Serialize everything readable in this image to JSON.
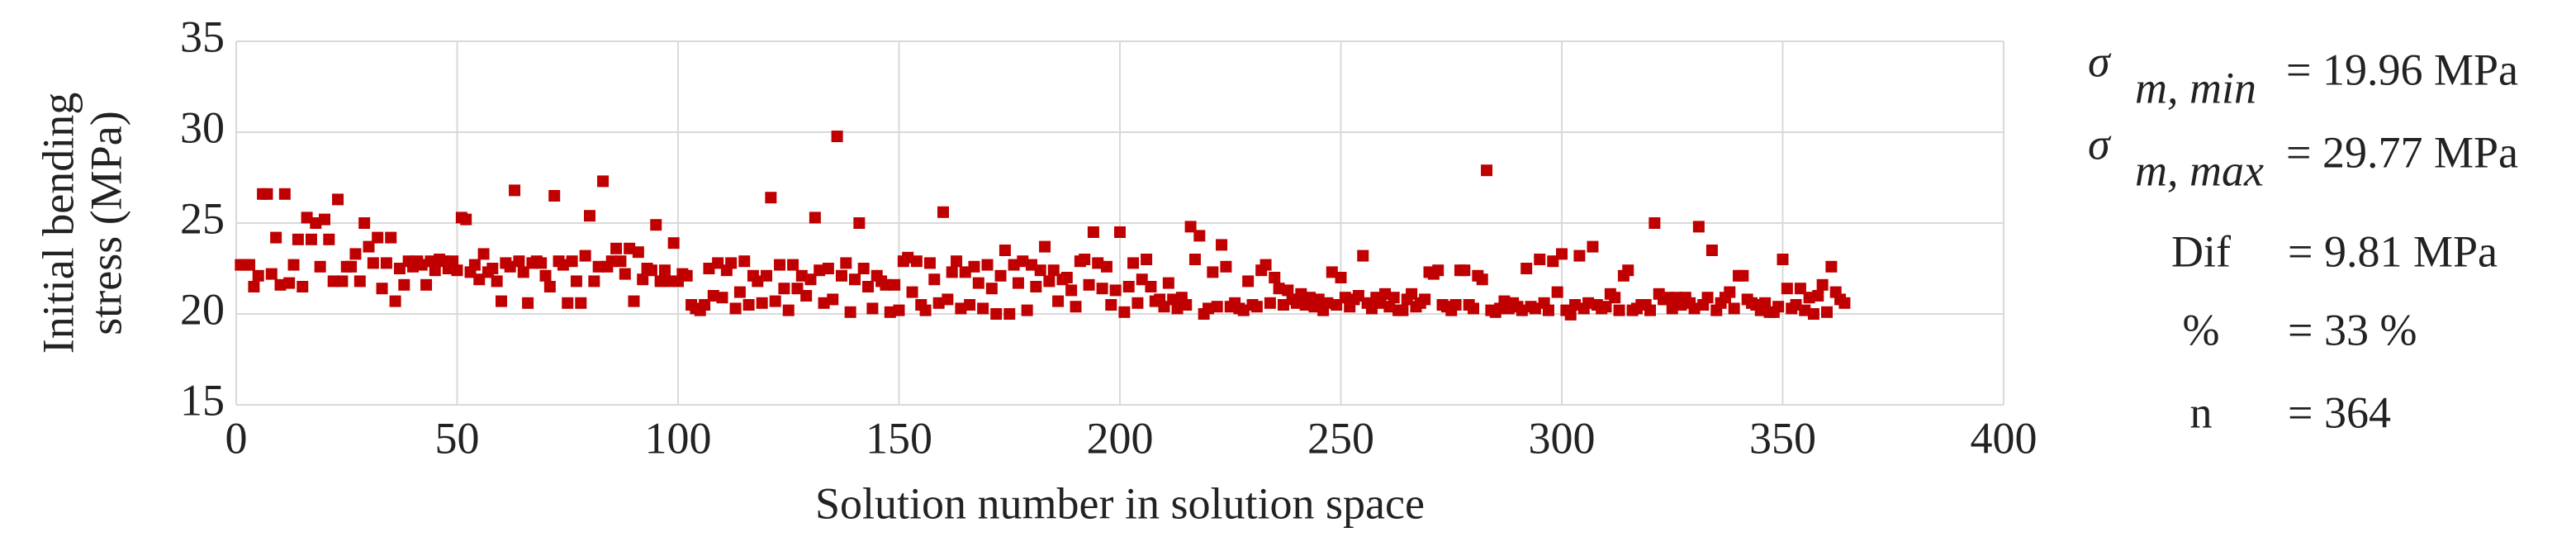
{
  "chart_data": {
    "type": "scatter",
    "xlabel": "Solution number in solution space",
    "ylabel": [
      "Initial bending",
      "stress (MPa)"
    ],
    "color": "#c00000",
    "xlim": [
      0,
      400
    ],
    "xticks": [
      0,
      50,
      100,
      150,
      200,
      250,
      300,
      350,
      400
    ],
    "ylim": [
      15,
      35
    ],
    "yticks": [
      15,
      20,
      25,
      30,
      35
    ],
    "grid": true,
    "x": [
      1,
      2,
      3,
      4,
      5,
      6,
      7,
      8,
      9,
      10,
      11,
      12,
      13,
      14,
      15,
      16,
      17,
      18,
      19,
      20,
      21,
      22,
      23,
      24,
      25,
      26,
      27,
      28,
      29,
      30,
      31,
      32,
      33,
      34,
      35,
      36,
      37,
      38,
      39,
      40,
      41,
      42,
      43,
      44,
      45,
      46,
      47,
      48,
      49,
      50,
      51,
      52,
      53,
      54,
      55,
      56,
      57,
      58,
      59,
      60,
      61,
      62,
      63,
      64,
      65,
      66,
      67,
      68,
      69,
      70,
      71,
      72,
      73,
      74,
      75,
      76,
      77,
      78,
      79,
      80,
      81,
      82,
      83,
      84,
      85,
      86,
      87,
      88,
      89,
      90,
      91,
      92,
      93,
      94,
      95,
      96,
      97,
      98,
      99,
      100,
      101,
      102,
      103,
      104,
      105,
      106,
      107,
      108,
      109,
      110,
      111,
      112,
      113,
      114,
      115,
      116,
      117,
      118,
      119,
      120,
      121,
      122,
      123,
      124,
      125,
      126,
      127,
      128,
      129,
      130,
      131,
      132,
      133,
      134,
      135,
      136,
      137,
      138,
      139,
      140,
      141,
      142,
      143,
      144,
      145,
      146,
      147,
      148,
      149,
      150,
      151,
      152,
      153,
      154,
      155,
      156,
      157,
      158,
      159,
      160,
      161,
      162,
      163,
      164,
      165,
      166,
      167,
      168,
      169,
      170,
      171,
      172,
      173,
      174,
      175,
      176,
      177,
      178,
      179,
      180,
      181,
      182,
      183,
      184,
      185,
      186,
      187,
      188,
      189,
      190,
      191,
      192,
      193,
      194,
      195,
      196,
      197,
      198,
      199,
      200,
      201,
      202,
      203,
      204,
      205,
      206,
      207,
      208,
      209,
      210,
      211,
      212,
      213,
      214,
      215,
      216,
      217,
      218,
      219,
      220,
      221,
      222,
      223,
      224,
      225,
      226,
      227,
      228,
      229,
      230,
      231,
      232,
      233,
      234,
      235,
      236,
      237,
      238,
      239,
      240,
      241,
      242,
      243,
      244,
      245,
      246,
      247,
      248,
      249,
      250,
      251,
      252,
      253,
      254,
      255,
      256,
      257,
      258,
      259,
      260,
      261,
      262,
      263,
      264,
      265,
      266,
      267,
      268,
      269,
      270,
      271,
      272,
      273,
      274,
      275,
      276,
      277,
      278,
      279,
      280,
      281,
      282,
      283,
      284,
      285,
      286,
      287,
      288,
      289,
      290,
      291,
      292,
      293,
      294,
      295,
      296,
      297,
      298,
      299,
      300,
      301,
      302,
      303,
      304,
      305,
      306,
      307,
      308,
      309,
      310,
      311,
      312,
      313,
      314,
      315,
      316,
      317,
      318,
      319,
      320,
      321,
      322,
      323,
      324,
      325,
      326,
      327,
      328,
      329,
      330,
      331,
      332,
      333,
      334,
      335,
      336,
      337,
      338,
      339,
      340,
      341,
      342,
      343,
      344,
      345,
      346,
      347,
      348,
      349,
      350,
      351,
      352,
      353,
      354,
      355,
      356,
      357,
      358,
      359,
      360,
      361,
      362,
      363,
      364
    ],
    "values": [
      22.7,
      22.7,
      22.7,
      21.5,
      22.1,
      26.6,
      26.6,
      22.2,
      24.2,
      21.6,
      26.6,
      21.7,
      22.7,
      24.1,
      21.5,
      25.3,
      24.1,
      25.0,
      22.6,
      25.2,
      24.1,
      21.8,
      26.3,
      21.8,
      22.6,
      22.6,
      23.3,
      21.8,
      25.0,
      23.7,
      22.8,
      24.2,
      21.4,
      22.8,
      24.2,
      20.7,
      22.5,
      21.6,
      22.9,
      22.6,
      22.9,
      22.7,
      21.6,
      22.9,
      22.4,
      23.0,
      22.9,
      22.5,
      22.9,
      22.4,
      25.3,
      25.2,
      22.3,
      22.7,
      21.9,
      23.3,
      22.3,
      22.5,
      21.8,
      20.7,
      22.8,
      22.6,
      26.8,
      22.9,
      22.3,
      20.6,
      22.8,
      22.9,
      22.8,
      22.1,
      21.5,
      26.5,
      22.9,
      22.7,
      20.6,
      22.9,
      21.8,
      20.6,
      23.2,
      25.4,
      21.8,
      22.6,
      27.3,
      22.6,
      22.9,
      23.6,
      22.9,
      22.2,
      23.6,
      20.7,
      23.4,
      21.9,
      22.5,
      22.4,
      24.9,
      21.8,
      22.4,
      21.8,
      23.9,
      21.8,
      22.2,
      22.1,
      20.5,
      20.3,
      20.2,
      20.5,
      22.5,
      21.0,
      22.8,
      20.9,
      22.4,
      22.8,
      20.3,
      21.2,
      22.9,
      20.5,
      22.1,
      21.8,
      20.6,
      22.1,
      26.4,
      20.7,
      22.7,
      21.4,
      20.2,
      22.7,
      21.4,
      22.1,
      21.0,
      21.9,
      25.3,
      22.4,
      20.6,
      22.5,
      20.8,
      29.77,
      22.1,
      22.8,
      20.1,
      21.9,
      25.0,
      22.5,
      21.5,
      20.3,
      22.1,
      21.8,
      21.6,
      20.1,
      21.6,
      20.2,
      22.9,
      23.1,
      21.2,
      22.9,
      20.5,
      20.2,
      22.8,
      21.9,
      20.6,
      25.6,
      20.8,
      22.3,
      22.9,
      20.3,
      22.3,
      20.5,
      22.6,
      21.7,
      20.3,
      22.7,
      21.4,
      20.0,
      22.1,
      23.5,
      20.0,
      22.7,
      21.7,
      22.9,
      20.2,
      22.7,
      21.5,
      22.4,
      23.7,
      21.8,
      22.4,
      20.7,
      21.9,
      22.0,
      21.3,
      20.4,
      22.9,
      23.0,
      21.6,
      24.5,
      22.8,
      21.4,
      22.6,
      20.5,
      21.3,
      24.5,
      20.1,
      21.5,
      22.8,
      20.6,
      21.9,
      23.0,
      21.5,
      20.7,
      20.8,
      20.4,
      21.7,
      20.8,
      20.3,
      20.9,
      20.5,
      24.8,
      23.0,
      24.3,
      20.0,
      20.3,
      22.3,
      20.4,
      23.8,
      22.6,
      20.4,
      20.6,
      20.3,
      20.2,
      21.8,
      20.5,
      20.4,
      22.4,
      22.7,
      20.6,
      22.0,
      21.4,
      20.5,
      21.3,
      20.8,
      20.6,
      21.1,
      20.5,
      20.9,
      20.4,
      20.8,
      20.2,
      20.6,
      22.3,
      20.5,
      22.0,
      20.9,
      20.4,
      20.8,
      21.0,
      23.2,
      20.6,
      20.3,
      20.9,
      20.6,
      21.1,
      20.4,
      20.9,
      20.2,
      20.2,
      20.8,
      21.1,
      20.4,
      20.6,
      20.8,
      22.3,
      22.2,
      22.4,
      20.5,
      20.4,
      20.2,
      20.5,
      22.4,
      22.4,
      20.5,
      20.3,
      22.1,
      21.9,
      27.9,
      20.2,
      20.1,
      20.3,
      20.7,
      20.3,
      20.6,
      20.4,
      20.2,
      22.5,
      20.4,
      20.3,
      23.0,
      20.6,
      20.2,
      22.9,
      21.2,
      23.3,
      20.2,
      19.96,
      20.5,
      23.2,
      20.3,
      20.6,
      23.7,
      20.5,
      20.3,
      20.4,
      21.1,
      20.9,
      20.2,
      22.1,
      22.4,
      20.2,
      20.3,
      20.5,
      20.5,
      20.2,
      25.0,
      21.1,
      20.8,
      20.9,
      20.3,
      20.9,
      20.5,
      20.9,
      20.6,
      20.3,
      24.8,
      20.5,
      20.9,
      23.5,
      20.2,
      20.6,
      20.9,
      21.2,
      20.3,
      22.1,
      22.1,
      20.8,
      20.6,
      20.5,
      20.2,
      20.6,
      20.1,
      20.1,
      20.4,
      23.0,
      21.4,
      20.3,
      20.5,
      21.4,
      20.2,
      20.9,
      20.0,
      21.0,
      21.6,
      20.1,
      22.6,
      21.2,
      20.8,
      20.6
    ],
    "annotations": [
      {
        "symbol": "σ",
        "subscript": "m, min",
        "text": "= 19.96 MPa"
      },
      {
        "symbol": "σ",
        "subscript": "m, max",
        "text": "= 29.77 MPa"
      },
      {
        "label": "Dif",
        "text": "= 9.81 MPa"
      },
      {
        "label": "%",
        "text": "= 33 %"
      },
      {
        "label": "n",
        "text": "= 364"
      }
    ]
  }
}
